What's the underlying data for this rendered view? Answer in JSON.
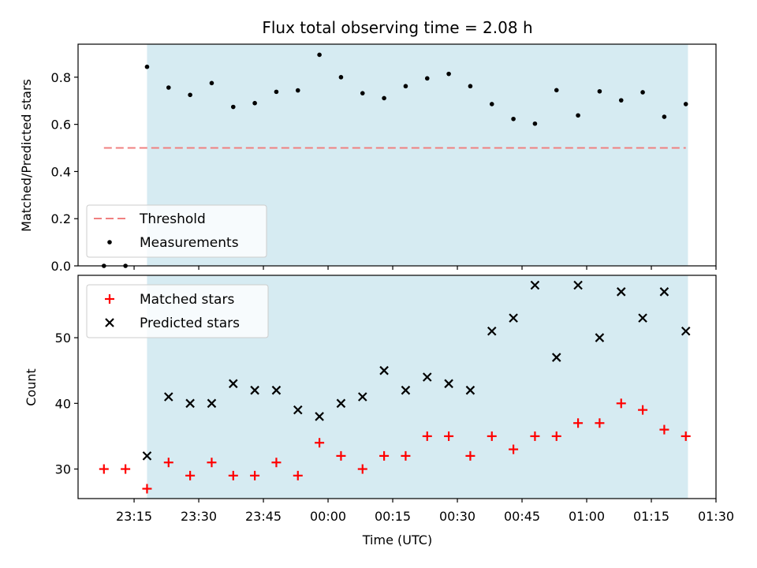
{
  "chart_data": {
    "type": "scatter",
    "title": "Flux total observing time = 2.08 h",
    "xlabel": "Time (UTC)",
    "x_ticks": [
      "23:15",
      "23:30",
      "23:45",
      "00:00",
      "00:15",
      "00:30",
      "00:45",
      "01:00",
      "01:15",
      "01:30"
    ],
    "x_range": [
      "23:02:00",
      "01:30:00"
    ],
    "shaded_interval": [
      "23:18:00",
      "01:23:30"
    ],
    "shade_color": "#add8e6",
    "times": [
      "23:08",
      "23:13",
      "23:18",
      "23:23",
      "23:28",
      "23:33",
      "23:38",
      "23:43",
      "23:48",
      "23:53",
      "23:58",
      "00:03",
      "00:08",
      "00:13",
      "00:18",
      "00:23",
      "00:28",
      "00:33",
      "00:38",
      "00:43",
      "00:48",
      "00:53",
      "00:58",
      "01:03",
      "01:08",
      "01:13",
      "01:18",
      "01:23"
    ],
    "panels": [
      {
        "ylabel": "Matched/Predicted stars",
        "ylim": [
          0,
          0.94
        ],
        "yticks": [
          "0.0",
          "0.2",
          "0.4",
          "0.6",
          "0.8"
        ],
        "series": [
          {
            "name": "Threshold",
            "kind": "dashed-line",
            "color": "#f08080",
            "x_start": "23:08",
            "x_end": "01:23",
            "value": 0.5
          },
          {
            "name": "Measurements",
            "kind": "dot",
            "color": "#000000",
            "values": [
              0.0,
              0.0,
              0.844,
              0.756,
              0.725,
              0.775,
              0.674,
              0.69,
              0.738,
              0.744,
              0.895,
              0.8,
              0.732,
              0.711,
              0.762,
              0.795,
              0.814,
              0.762,
              0.686,
              0.623,
              0.603,
              0.745,
              0.638,
              0.74,
              0.702,
              0.736,
              0.632,
              0.686
            ]
          }
        ],
        "legend_position": "lower-left"
      },
      {
        "ylabel": "Count",
        "ylim": [
          25.5,
          59.5
        ],
        "yticks": [
          "30",
          "40",
          "50"
        ],
        "series": [
          {
            "name": "Matched stars",
            "kind": "plus",
            "color": "#ff0000",
            "values": [
              30,
              30,
              27,
              31,
              29,
              31,
              29,
              29,
              31,
              29,
              34,
              32,
              30,
              32,
              32,
              35,
              35,
              32,
              35,
              33,
              35,
              35,
              37,
              37,
              40,
              39,
              36,
              35
            ]
          },
          {
            "name": "Predicted stars",
            "kind": "x",
            "color": "#000000",
            "values": [
              null,
              null,
              32,
              41,
              40,
              40,
              43,
              42,
              42,
              39,
              38,
              40,
              41,
              45,
              42,
              44,
              43,
              42,
              51,
              53,
              58,
              47,
              58,
              50,
              57,
              53,
              57,
              51
            ]
          }
        ],
        "legend_position": "upper-left"
      }
    ]
  }
}
